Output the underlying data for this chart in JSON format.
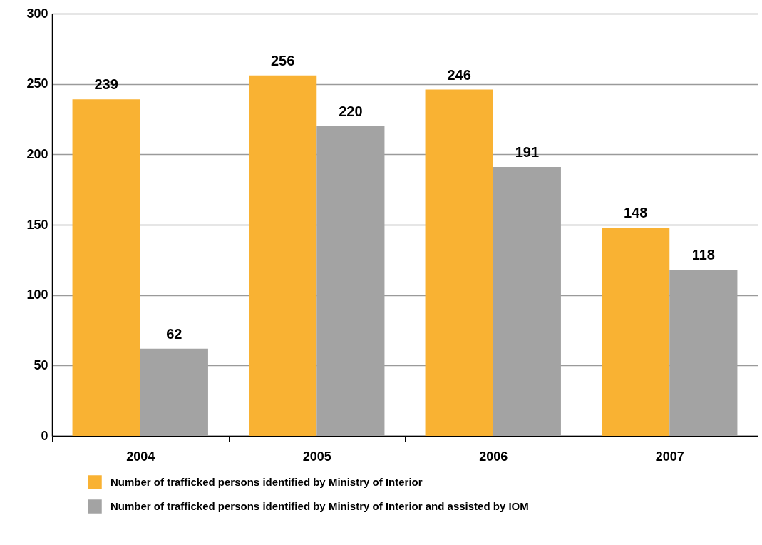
{
  "chart_data": {
    "type": "bar",
    "categories": [
      "2004",
      "2005",
      "2006",
      "2007"
    ],
    "series": [
      {
        "name": "Number of trafficked persons identified by Ministry of Interior",
        "color": "#f9b233",
        "values": [
          239,
          256,
          246,
          148
        ]
      },
      {
        "name": "Number of trafficked persons identified by Ministry of Interior and assisted by IOM",
        "color": "#a3a3a3",
        "values": [
          62,
          220,
          191,
          118
        ]
      }
    ],
    "ylim": [
      0,
      300
    ],
    "yticks": [
      0,
      50,
      100,
      150,
      200,
      250,
      300
    ],
    "grid": "y",
    "legend": "bottom",
    "data_labels": true
  }
}
